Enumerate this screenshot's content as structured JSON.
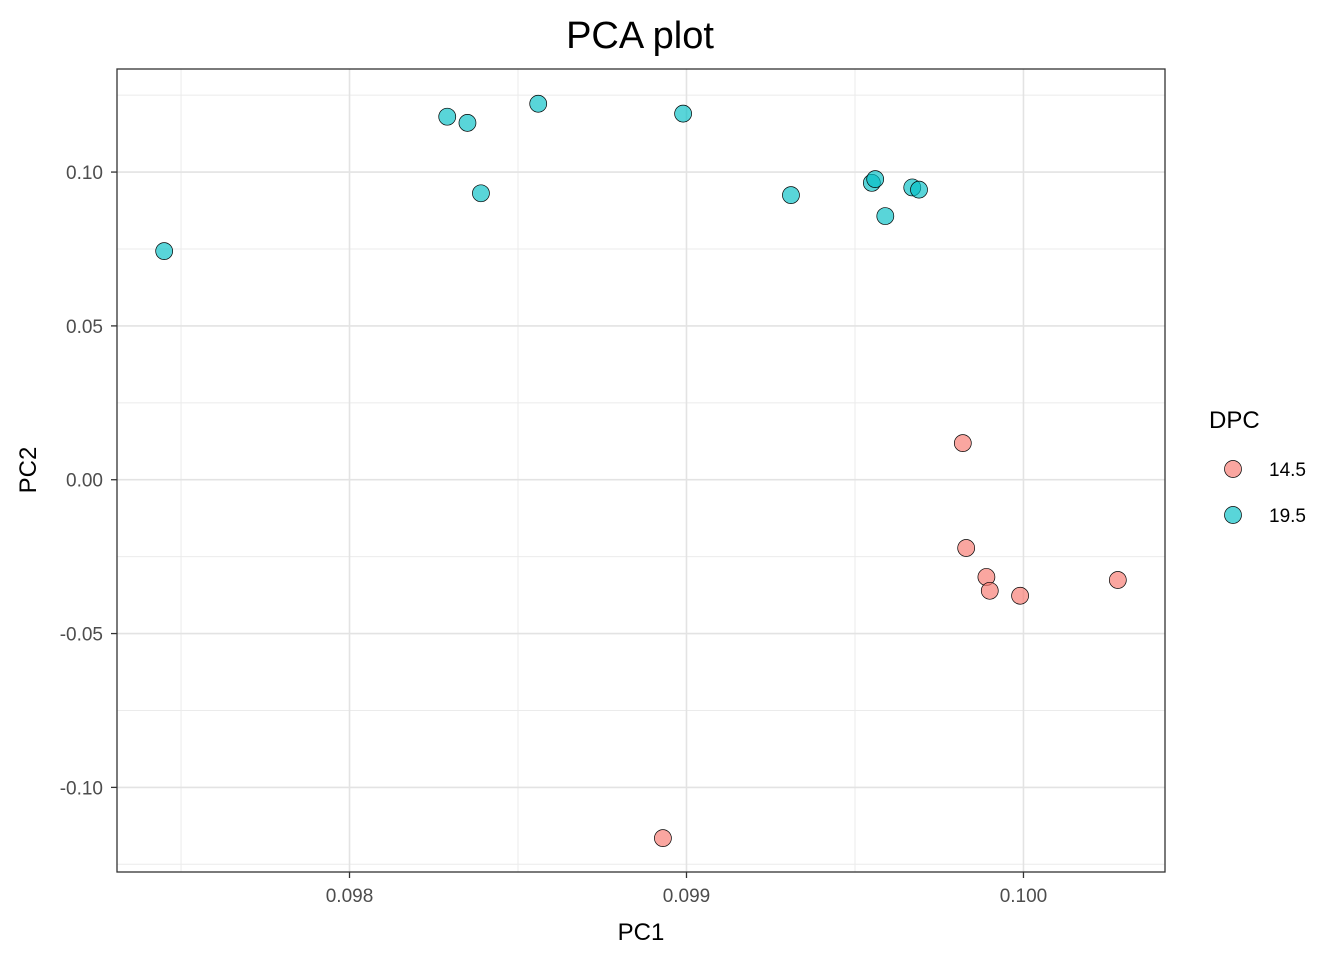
{
  "chart_data": {
    "type": "scatter",
    "title": "PCA plot",
    "xlabel": "PC1",
    "ylabel": "PC2",
    "xlim": [
      0.09731,
      0.10042
    ],
    "ylim": [
      -0.1275,
      0.1335
    ],
    "x_ticks": [
      0.098,
      0.099,
      0.1
    ],
    "x_tick_labels": [
      "0.098",
      "0.099",
      "0.100"
    ],
    "y_ticks": [
      -0.1,
      -0.05,
      0.0,
      0.05,
      0.1
    ],
    "y_tick_labels": [
      "-0.10",
      "-0.05",
      "0.00",
      "0.05",
      "0.10"
    ],
    "grid": true,
    "legend": {
      "title": "DPC",
      "position": "right"
    },
    "series": [
      {
        "name": "14.5",
        "color": "#F8766D",
        "points": [
          {
            "x": 0.09982,
            "y": 0.0119
          },
          {
            "x": 0.09983,
            "y": -0.0222
          },
          {
            "x": 0.09989,
            "y": -0.0316
          },
          {
            "x": 0.0999,
            "y": -0.0361
          },
          {
            "x": 0.09999,
            "y": -0.0377
          },
          {
            "x": 0.10028,
            "y": -0.0326
          },
          {
            "x": 0.09893,
            "y": -0.1165
          }
        ]
      },
      {
        "name": "19.5",
        "color": "#00BFC4",
        "points": [
          {
            "x": 0.09745,
            "y": 0.0743
          },
          {
            "x": 0.09829,
            "y": 0.118
          },
          {
            "x": 0.09835,
            "y": 0.116
          },
          {
            "x": 0.09839,
            "y": 0.0931
          },
          {
            "x": 0.09856,
            "y": 0.1222
          },
          {
            "x": 0.09899,
            "y": 0.119
          },
          {
            "x": 0.09931,
            "y": 0.0925
          },
          {
            "x": 0.09955,
            "y": 0.0965
          },
          {
            "x": 0.09956,
            "y": 0.0977
          },
          {
            "x": 0.09959,
            "y": 0.0857
          },
          {
            "x": 0.09967,
            "y": 0.095
          },
          {
            "x": 0.09969,
            "y": 0.0943
          }
        ]
      }
    ]
  }
}
